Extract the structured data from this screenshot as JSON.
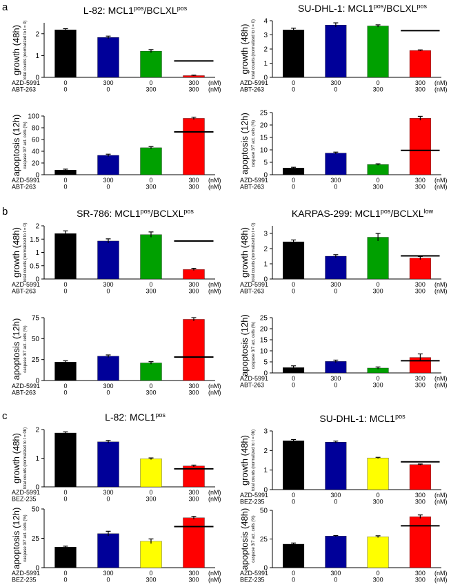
{
  "panel_labels": [
    "a",
    "b",
    "c"
  ],
  "colors": {
    "black": "#000000",
    "blue": "#000099",
    "green": "#00a000",
    "red": "#ff0000",
    "yellow": "#ffff00"
  },
  "chart_data": [
    {
      "id": "a-l82-growth",
      "type": "bar",
      "title": "L-82: MCL1",
      "title_sup": "pos",
      "title_mid": "/BCLXL",
      "title_sup2": "pos",
      "ylabel": "growth (48h)",
      "ysub": "total counts (normalized to t = 0)",
      "ylim": [
        0,
        2.5
      ],
      "yticks": [
        "0",
        "1",
        "2"
      ],
      "ytick_values": [
        0,
        1,
        2
      ],
      "values": [
        2.18,
        1.83,
        1.2,
        0.08
      ],
      "errors": [
        0.05,
        0.06,
        0.07,
        0.02
      ],
      "bar_colors": [
        "#000000",
        "#000099",
        "#00a000",
        "#ff0000"
      ],
      "expected_line": {
        "bar": 3,
        "value": 0.75
      },
      "conditions": [
        {
          "name": "AZD-5991",
          "values": [
            "0",
            "300",
            "0",
            "300"
          ],
          "unit": "(nM)"
        },
        {
          "name": "ABT-263",
          "values": [
            "0",
            "0",
            "300",
            "300"
          ],
          "unit": "(nM)"
        }
      ]
    },
    {
      "id": "a-sudhl1-growth",
      "type": "bar",
      "title": "SU-DHL-1: MCL1",
      "title_sup": "pos",
      "title_mid": "/BCLXL",
      "title_sup2": "pos",
      "ylabel": "growth (48h)",
      "ysub": "total counts (normalized to t = 0)",
      "ylim": [
        0,
        4
      ],
      "yticks": [
        "0",
        "1",
        "2",
        "3",
        "4"
      ],
      "ytick_values": [
        0,
        1,
        2,
        3,
        4
      ],
      "values": [
        3.35,
        3.7,
        3.63,
        1.9
      ],
      "errors": [
        0.12,
        0.15,
        0.08,
        0.04
      ],
      "bar_colors": [
        "#000000",
        "#000099",
        "#00a000",
        "#ff0000"
      ],
      "expected_line": {
        "bar": 3,
        "value": 3.3
      },
      "conditions": [
        {
          "name": "AZD-5991",
          "values": [
            "0",
            "300",
            "0",
            "300"
          ],
          "unit": "(nM)"
        },
        {
          "name": "ABT-263",
          "values": [
            "0",
            "0",
            "300",
            "300"
          ],
          "unit": "(nM)"
        }
      ]
    },
    {
      "id": "a-l82-apoptosis",
      "type": "bar",
      "ylabel": "apoptosis (12h)",
      "ysub": "caspase 3/7 act. cells (%)",
      "ylim": [
        0,
        100
      ],
      "yticks": [
        "0",
        "20",
        "40",
        "60",
        "80",
        "100"
      ],
      "ytick_values": [
        0,
        20,
        40,
        60,
        80,
        100
      ],
      "values": [
        8,
        33,
        46,
        96
      ],
      "errors": [
        1.5,
        2,
        2,
        2
      ],
      "bar_colors": [
        "#000000",
        "#000099",
        "#00a000",
        "#ff0000"
      ],
      "expected_line": {
        "bar": 3,
        "value": 73
      },
      "conditions": [
        {
          "name": "AZD-5991",
          "values": [
            "0",
            "300",
            "0",
            "300"
          ],
          "unit": "(nM)"
        },
        {
          "name": "ABT-263",
          "values": [
            "0",
            "0",
            "300",
            "300"
          ],
          "unit": "(nM)"
        }
      ]
    },
    {
      "id": "a-sudhl1-apoptosis",
      "type": "bar",
      "ylabel": "apoptosis (12h)",
      "ysub": "caspase 3/7 act. cells (%)",
      "ylim": [
        0,
        25
      ],
      "yticks": [
        "0",
        "5",
        "10",
        "15",
        "20",
        "25"
      ],
      "ytick_values": [
        0,
        5,
        10,
        15,
        20,
        25
      ],
      "values": [
        2.7,
        8.7,
        4.1,
        22.7
      ],
      "errors": [
        0.3,
        0.4,
        0.3,
        0.8
      ],
      "bar_colors": [
        "#000000",
        "#000099",
        "#00a000",
        "#ff0000"
      ],
      "expected_line": {
        "bar": 3,
        "value": 9.8
      },
      "conditions": [
        {
          "name": "AZD-5991",
          "values": [
            "0",
            "300",
            "0",
            "300"
          ],
          "unit": "(nM)"
        },
        {
          "name": "ABT-263",
          "values": [
            "0",
            "0",
            "300",
            "300"
          ],
          "unit": "(nM)"
        }
      ]
    },
    {
      "id": "b-sr786-growth",
      "type": "bar",
      "title": "SR-786: MCL1",
      "title_sup": "pos",
      "title_mid": "/BCLXL",
      "title_sup2": "pos",
      "ylabel": "growth (48h)",
      "ysub": "total counts (normalized to t = 0)",
      "ylim": [
        0,
        2
      ],
      "yticks": [
        "0",
        "0.5",
        "1",
        "1.5",
        "2"
      ],
      "ytick_values": [
        0,
        0.5,
        1,
        1.5,
        2
      ],
      "values": [
        1.71,
        1.43,
        1.67,
        0.36
      ],
      "errors": [
        0.1,
        0.08,
        0.1,
        0.04
      ],
      "bar_colors": [
        "#000000",
        "#000099",
        "#00a000",
        "#ff0000"
      ],
      "expected_line": {
        "bar": 3,
        "value": 1.43
      },
      "conditions": [
        {
          "name": "AZD-5991",
          "values": [
            "0",
            "300",
            "0",
            "300"
          ],
          "unit": "(nM)"
        },
        {
          "name": "ABT-263",
          "values": [
            "0",
            "0",
            "300",
            "300"
          ],
          "unit": "(nM)"
        }
      ]
    },
    {
      "id": "b-karpas299-growth",
      "type": "bar",
      "title": "KARPAS-299: MCL1",
      "title_sup": "pos",
      "title_mid": "/BCLXL",
      "title_sup2": "low",
      "ylabel": "growth (48h)",
      "ysub": "total counts (normalized to t = 0)",
      "ylim": [
        0,
        3.5
      ],
      "yticks": [
        "0",
        "1",
        "2",
        "3"
      ],
      "ytick_values": [
        0,
        1,
        2,
        3
      ],
      "values": [
        2.45,
        1.5,
        2.75,
        1.38
      ],
      "errors": [
        0.12,
        0.1,
        0.25,
        0.1
      ],
      "bar_colors": [
        "#000000",
        "#000099",
        "#00a000",
        "#ff0000"
      ],
      "expected_line": {
        "bar": 3,
        "value": 1.52
      },
      "conditions": [
        {
          "name": "AZD-5991",
          "values": [
            "0",
            "300",
            "0",
            "300"
          ],
          "unit": "(nM)"
        },
        {
          "name": "ABT-263",
          "values": [
            "0",
            "0",
            "300",
            "300"
          ],
          "unit": "(nM)"
        }
      ]
    },
    {
      "id": "b-sr786-apoptosis",
      "type": "bar",
      "ylabel": "apoptosis (12h)",
      "ysub": "caspase 3/7 act. cells (%)",
      "ylim": [
        0,
        75
      ],
      "yticks": [
        "0",
        "25",
        "50",
        "75"
      ],
      "ytick_values": [
        0,
        25,
        50,
        75
      ],
      "values": [
        22,
        29,
        21,
        73
      ],
      "errors": [
        1.5,
        1.5,
        1.5,
        2
      ],
      "bar_colors": [
        "#000000",
        "#000099",
        "#00a000",
        "#ff0000"
      ],
      "expected_line": {
        "bar": 3,
        "value": 28
      },
      "conditions": [
        {
          "name": "AZD-5991",
          "values": [
            "0",
            "300",
            "0",
            "300"
          ],
          "unit": "(nM)"
        },
        {
          "name": "ABT-263",
          "values": [
            "0",
            "0",
            "300",
            "300"
          ],
          "unit": "(nM)"
        }
      ]
    },
    {
      "id": "b-karpas299-apoptosis",
      "type": "bar",
      "ylabel": "apoptosis (12h)",
      "ysub": "caspase 3/7 act. cells (%)",
      "ylim": [
        0,
        25
      ],
      "yticks": [
        "0",
        "5",
        "10",
        "15",
        "20",
        "25"
      ],
      "ytick_values": [
        0,
        5,
        10,
        15,
        20,
        25
      ],
      "values": [
        2.4,
        5.2,
        2.2,
        7
      ],
      "errors": [
        0.8,
        0.6,
        0.5,
        1.6
      ],
      "bar_colors": [
        "#000000",
        "#000099",
        "#00a000",
        "#ff0000"
      ],
      "expected_line": {
        "bar": 3,
        "value": 5.5
      },
      "conditions": [
        {
          "name": "AZD-5991",
          "values": [
            "0",
            "300",
            "0",
            "300"
          ],
          "unit": "(nM)"
        },
        {
          "name": "ABT-263",
          "values": [
            "0",
            "0",
            "300",
            "300"
          ],
          "unit": "(nM)"
        }
      ]
    },
    {
      "id": "c-l82-growth",
      "type": "bar",
      "title": "L-82: MCL1",
      "title_sup": "pos",
      "ylabel": "growth (48h)",
      "ysub": "total counts (normalized to t = 0h)",
      "ylim": [
        0,
        2
      ],
      "yticks": [
        "0",
        "1",
        "2"
      ],
      "ytick_values": [
        0,
        1,
        2
      ],
      "values": [
        1.88,
        1.57,
        0.98,
        0.73
      ],
      "errors": [
        0.04,
        0.05,
        0.03,
        0.03
      ],
      "bar_colors": [
        "#000000",
        "#000099",
        "#ffff00",
        "#ff0000"
      ],
      "expected_line": {
        "bar": 3,
        "value": 0.63
      },
      "conditions": [
        {
          "name": "AZD-5991",
          "values": [
            "0",
            "300",
            "0",
            "300"
          ],
          "unit": "(nM)"
        },
        {
          "name": "BEZ-235",
          "values": [
            "0",
            "0",
            "300",
            "300"
          ],
          "unit": "(nM)"
        }
      ]
    },
    {
      "id": "c-sudhl1-growth",
      "type": "bar",
      "title": "SU-DHL-1: MCL1",
      "title_sup": "pos",
      "ylabel": "growth (48h)",
      "ysub": "total counts (normalized to t = 0h)",
      "ylim": [
        0,
        3
      ],
      "yticks": [
        "0",
        "1",
        "2",
        "3"
      ],
      "ytick_values": [
        0,
        1,
        2,
        3
      ],
      "values": [
        2.5,
        2.43,
        1.62,
        1.28
      ],
      "errors": [
        0.06,
        0.05,
        0.03,
        0.03
      ],
      "bar_colors": [
        "#000000",
        "#000099",
        "#ffff00",
        "#ff0000"
      ],
      "expected_line": {
        "bar": 3,
        "value": 1.42
      },
      "conditions": [
        {
          "name": "AZD-5991",
          "values": [
            "0",
            "300",
            "0",
            "300"
          ],
          "unit": "(nM)"
        },
        {
          "name": "BEZ-235",
          "values": [
            "0",
            "0",
            "300",
            "300"
          ],
          "unit": "(nM)"
        }
      ]
    },
    {
      "id": "c-l82-apoptosis",
      "type": "bar",
      "ylabel": "apoptosis (12h)",
      "ysub": "caspase 3/7 act. cells (%)",
      "ylim": [
        0,
        50
      ],
      "yticks": [
        "0",
        "25",
        "50"
      ],
      "ytick_values": [
        0,
        25,
        50
      ],
      "values": [
        17.5,
        29,
        22.5,
        42.5
      ],
      "errors": [
        0.8,
        2,
        2,
        1.2
      ],
      "bar_colors": [
        "#000000",
        "#000099",
        "#ffff00",
        "#ff0000"
      ],
      "expected_line": {
        "bar": 3,
        "value": 35
      },
      "conditions": [
        {
          "name": "AZD-5991",
          "values": [
            "0",
            "300",
            "0",
            "300"
          ],
          "unit": "(nM)"
        },
        {
          "name": "BEZ-235",
          "values": [
            "0",
            "0",
            "300",
            "300"
          ],
          "unit": "(nM)"
        }
      ]
    },
    {
      "id": "c-sudhl1-apoptosis",
      "type": "bar",
      "ylabel": "apoptosis (48h)",
      "ysub": "caspase 3/7 act. cells (%)",
      "ylim": [
        0,
        50
      ],
      "yticks": [
        "0",
        "25",
        "50"
      ],
      "ytick_values": [
        0,
        25,
        50
      ],
      "values": [
        20.5,
        27.5,
        27,
        44.5
      ],
      "errors": [
        1,
        0.5,
        0.8,
        1.5
      ],
      "bar_colors": [
        "#000000",
        "#000099",
        "#ffff00",
        "#ff0000"
      ],
      "expected_line": {
        "bar": 3,
        "value": 36.5
      },
      "conditions": [
        {
          "name": "AZD-5991",
          "values": [
            "0",
            "300",
            "0",
            "300"
          ],
          "unit": "(nM)"
        },
        {
          "name": "BEZ-235",
          "values": [
            "0",
            "0",
            "300",
            "300"
          ],
          "unit": "(nM)"
        }
      ]
    }
  ]
}
